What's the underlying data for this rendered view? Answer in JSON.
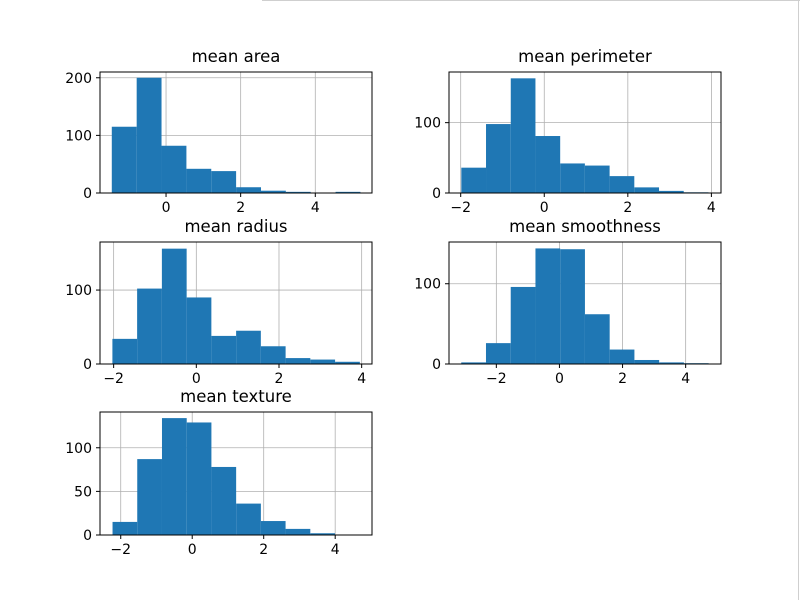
{
  "colors": {
    "bar": "#1f77b4",
    "grid": "#b0b0b0",
    "axis": "#000000",
    "background": "#ffffff"
  },
  "chart_data": [
    {
      "type": "bar",
      "title": "mean area",
      "bin_edges": [
        -1.454,
        -0.787,
        -0.121,
        0.546,
        1.212,
        1.878,
        2.545,
        3.211,
        3.877,
        4.544,
        5.21
      ],
      "values": [
        115,
        200,
        82,
        42,
        38,
        10,
        4,
        2,
        0,
        2
      ],
      "xlim": [
        -1.77,
        5.52
      ],
      "ylim": [
        0,
        210
      ],
      "xticks": [
        0,
        2,
        4
      ],
      "yticks": [
        0,
        100,
        200
      ],
      "grid": true
    },
    {
      "type": "bar",
      "title": "mean perimeter",
      "bin_edges": [
        -1.985,
        -1.394,
        -0.802,
        -0.211,
        0.381,
        0.972,
        1.564,
        2.155,
        2.747,
        3.338,
        3.93
      ],
      "values": [
        36,
        98,
        163,
        81,
        42,
        39,
        24,
        8,
        3,
        1
      ],
      "xlim": [
        -2.28,
        4.23
      ],
      "ylim": [
        0,
        172
      ],
      "xticks": [
        -2,
        0,
        2,
        4
      ],
      "yticks": [
        0,
        100
      ],
      "grid": true
    },
    {
      "type": "bar",
      "title": "mean radius",
      "bin_edges": [
        -2.03,
        -1.432,
        -0.833,
        -0.234,
        0.364,
        0.963,
        1.561,
        2.16,
        2.758,
        3.357,
        3.956
      ],
      "values": [
        34,
        102,
        156,
        90,
        38,
        45,
        24,
        8,
        6,
        3
      ],
      "xlim": [
        -2.33,
        4.25
      ],
      "ylim": [
        0,
        165
      ],
      "xticks": [
        -2,
        0,
        2,
        4
      ],
      "yticks": [
        0,
        100
      ],
      "grid": true
    },
    {
      "type": "bar",
      "title": "mean smoothness",
      "bin_edges": [
        -3.112,
        -2.328,
        -1.544,
        -0.76,
        0.024,
        0.808,
        1.592,
        2.376,
        3.16,
        3.944,
        4.728
      ],
      "values": [
        2,
        26,
        96,
        144,
        143,
        62,
        18,
        5,
        2,
        1
      ],
      "xlim": [
        -3.5,
        5.12
      ],
      "ylim": [
        0,
        152
      ],
      "xticks": [
        -2,
        0,
        2,
        4
      ],
      "yticks": [
        0,
        100
      ],
      "grid": true
    },
    {
      "type": "bar",
      "title": "mean texture",
      "bin_edges": [
        -2.229,
        -1.538,
        -0.846,
        -0.154,
        0.537,
        1.229,
        1.921,
        2.612,
        3.304,
        3.995,
        4.687
      ],
      "values": [
        15,
        87,
        134,
        129,
        78,
        36,
        16,
        7,
        2,
        0
      ],
      "xlim": [
        -2.58,
        5.03
      ],
      "ylim": [
        0,
        141
      ],
      "xticks": [
        -2,
        0,
        2,
        4
      ],
      "yticks": [
        0,
        50,
        100
      ],
      "grid": true
    }
  ]
}
